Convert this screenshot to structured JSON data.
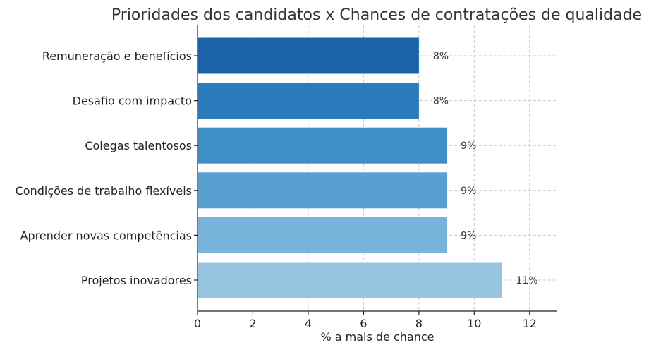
{
  "chart_data": {
    "type": "bar",
    "orientation": "horizontal",
    "title": "Prioridades dos candidatos x Chances de contratações de qualidade",
    "xlabel": "% a mais de chance",
    "ylabel": "",
    "xlim": [
      0,
      13
    ],
    "x_ticks": [
      0,
      2,
      4,
      6,
      8,
      10,
      12
    ],
    "grid": true,
    "categories": [
      "Remuneração e benefícios",
      "Desafio com impacto",
      "Colegas talentosos",
      "Condições de trabalho flexíveis",
      "Aprender novas competências",
      "Projetos inovadores"
    ],
    "values": [
      8,
      8,
      9,
      9,
      9,
      11
    ],
    "data_labels": [
      "8%",
      "8%",
      "9%",
      "9%",
      "9%",
      "11%"
    ],
    "colors": [
      "#1a63ab",
      "#2b7bbc",
      "#3f8fc6",
      "#58a0cf",
      "#77b3da",
      "#97c5e0"
    ]
  }
}
